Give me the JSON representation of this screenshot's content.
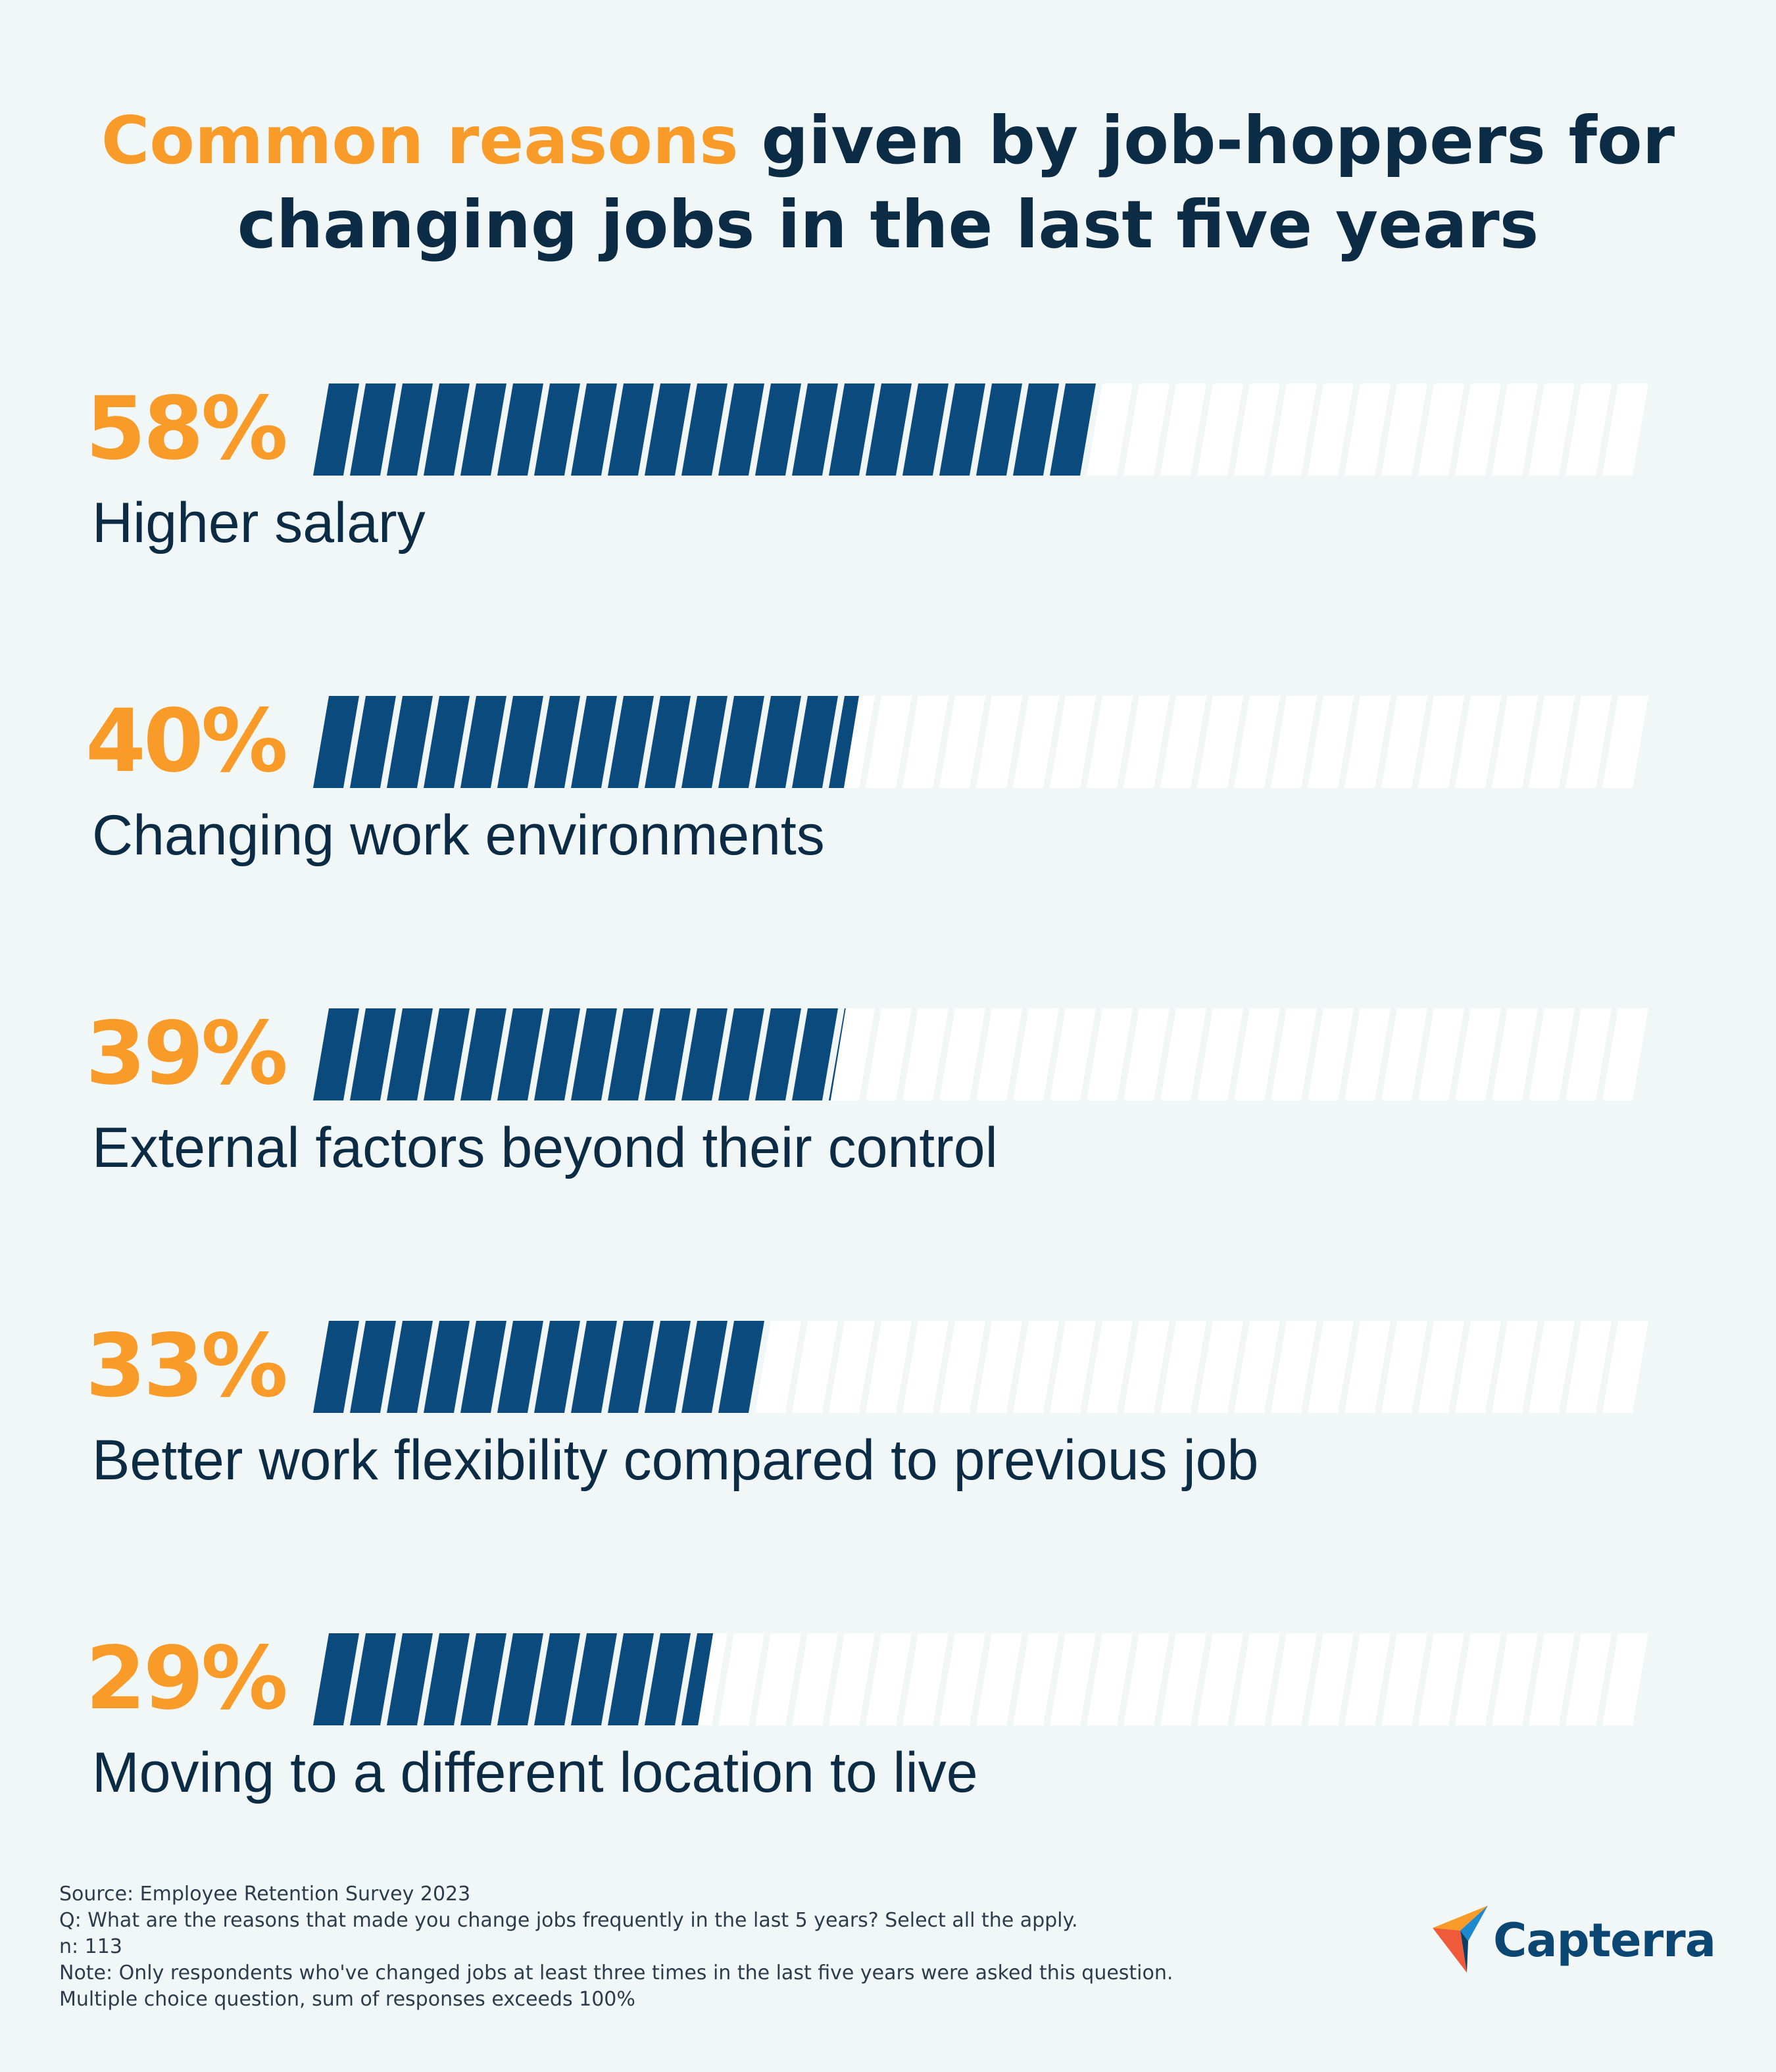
{
  "title": {
    "highlight": "Common reasons",
    "rest_line1": " given by job-hoppers for",
    "line2": "changing jobs in the last five years"
  },
  "colors": {
    "accent": "#f99b28",
    "navy": "#0c2b44",
    "bar_fill": "#0b4a7d",
    "bar_empty": "#ffffff",
    "background": "#f1f6f7"
  },
  "chart_data": {
    "type": "bar",
    "orientation": "horizontal",
    "title": "Common reasons given by job-hoppers for changing jobs in the last five years",
    "categories": [
      "Higher salary",
      "Changing work environments",
      "External factors beyond their control",
      "Better work flexibility compared to previous job",
      "Moving to a different location to live"
    ],
    "values": [
      58,
      40,
      39,
      33,
      29
    ],
    "value_labels": [
      "58%",
      "40%",
      "39%",
      "33%",
      "29%"
    ],
    "xlim": [
      0,
      100
    ],
    "unit": "%"
  },
  "footnotes": {
    "source": "Source: Employee Retention Survey 2023",
    "question": "Q: What are the reasons that made you change jobs frequently in the last 5 years? Select all the apply.",
    "n": "n: 113",
    "note": "Note: Only respondents who've changed jobs at least three times in the last five years were asked this question.",
    "multiple": "Multiple choice question, sum of responses exceeds 100%"
  },
  "brand": {
    "name": "Capterra",
    "icon": "capterra-arrow-icon"
  }
}
